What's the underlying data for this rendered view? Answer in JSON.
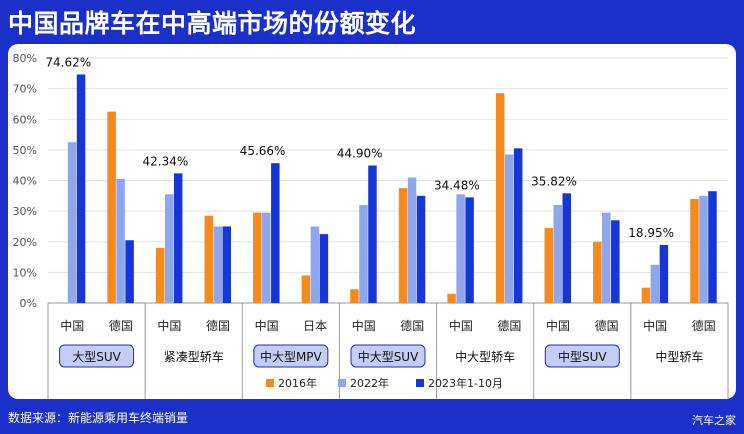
{
  "title": "中国品牌车在中高端市场的份额变化",
  "source": "数据来源：新能源乘用车终端销量",
  "watermark": "汽车之家",
  "chart_data": {
    "type": "bar",
    "ylim": [
      0,
      80
    ],
    "y_ticks": [
      "0%",
      "10%",
      "20%",
      "30%",
      "40%",
      "50%",
      "60%",
      "70%",
      "80%"
    ],
    "grid": true,
    "legend_position": "bottom",
    "groups": [
      {
        "name": "大型SUV",
        "highlight": true,
        "categories": [
          "中国",
          "德国"
        ],
        "annotation": "74.62%"
      },
      {
        "name": "紧凑型轿车",
        "highlight": false,
        "categories": [
          "中国",
          "德国"
        ],
        "annotation": "42.34%"
      },
      {
        "name": "中大型MPV",
        "highlight": true,
        "categories": [
          "中国",
          "日本"
        ],
        "annotation": "45.66%"
      },
      {
        "name": "中大型SUV",
        "highlight": true,
        "categories": [
          "中国",
          "德国"
        ],
        "annotation": "44.90%"
      },
      {
        "name": "中大型轿车",
        "highlight": false,
        "categories": [
          "中国",
          "德国"
        ],
        "annotation": "34.48%"
      },
      {
        "name": "中型SUV",
        "highlight": true,
        "categories": [
          "中国",
          "德国"
        ],
        "annotation": "35.82%"
      },
      {
        "name": "中型轿车",
        "highlight": false,
        "categories": [
          "中国",
          "德国"
        ],
        "annotation": "18.95%"
      }
    ],
    "series": [
      {
        "name": "2016年",
        "color": "#f58a1f",
        "values": [
          0,
          62.5,
          18,
          28.5,
          29.5,
          9,
          4.5,
          37.5,
          3,
          68.5,
          24.5,
          20,
          5,
          34
        ]
      },
      {
        "name": "2022年",
        "color": "#8ea6ec",
        "values": [
          52.5,
          40.5,
          35.5,
          25,
          29.5,
          25,
          32,
          41,
          35.5,
          48.5,
          32,
          29.5,
          12.5,
          35
        ]
      },
      {
        "name": "2023年1-10月",
        "color": "#1636d8",
        "values": [
          74.62,
          20.5,
          42.34,
          25,
          45.66,
          22.5,
          44.9,
          35,
          34.48,
          50.5,
          35.82,
          27,
          18.95,
          36.5
        ]
      }
    ]
  }
}
